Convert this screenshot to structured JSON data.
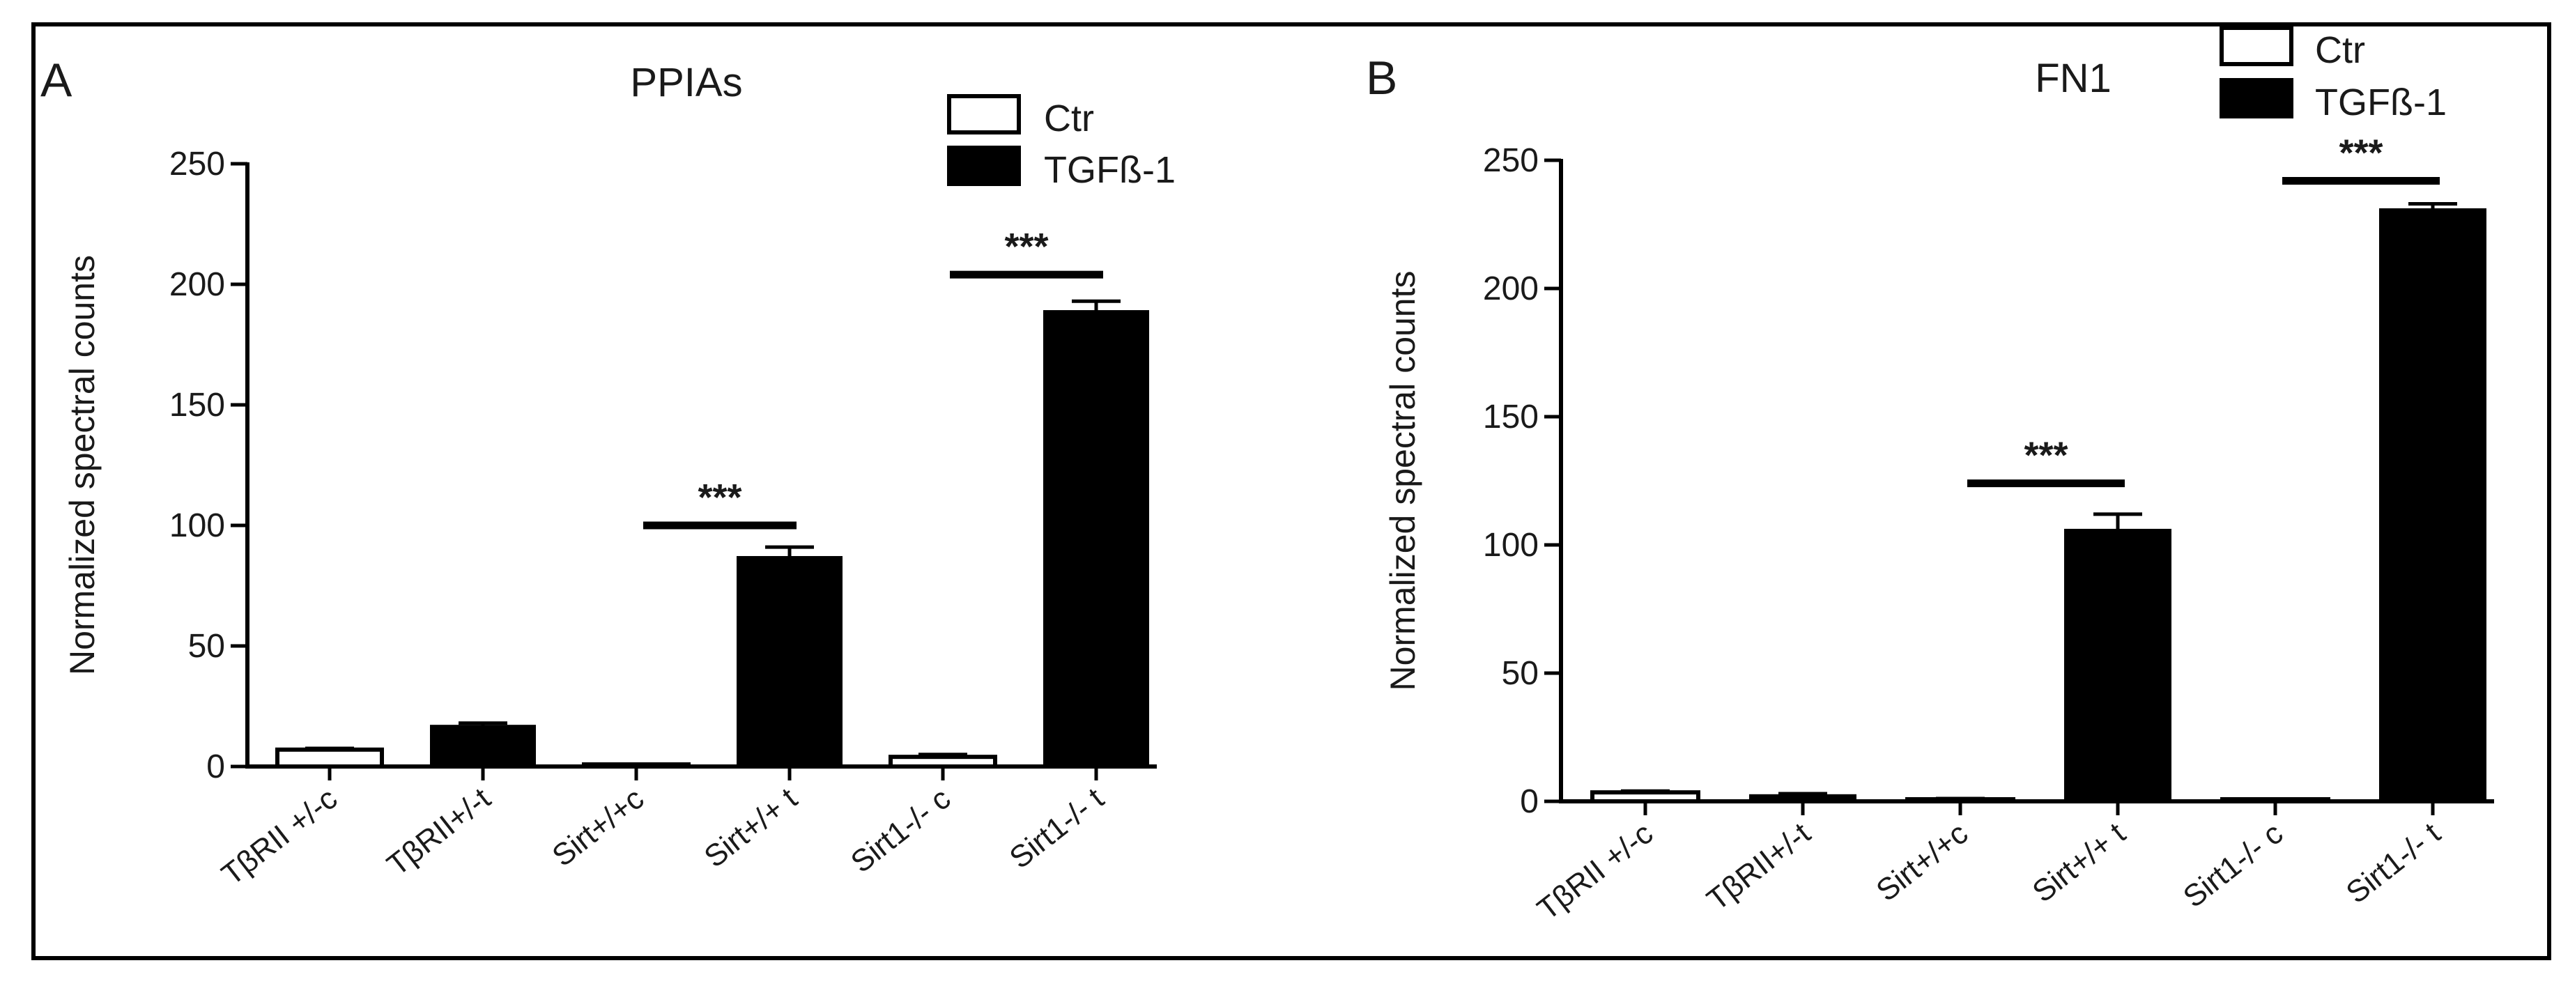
{
  "figure": {
    "panels": [
      {
        "letter": "A",
        "chart_index": 0
      },
      {
        "letter": "B",
        "chart_index": 1
      }
    ]
  },
  "chart_data": [
    {
      "type": "bar",
      "title": "PPIAs",
      "ylabel": "Normalized spectral counts",
      "xlabel": "",
      "categories": [
        "TβRII +/-c",
        "TβRII+/-t",
        "Sirt+/+c",
        "Sirt+/+ t",
        "Sirt1-/- c",
        "Sirt1-/- t"
      ],
      "values": [
        7,
        17,
        0.5,
        87,
        4,
        189
      ],
      "errors": [
        0.5,
        1,
        0.3,
        4,
        1,
        4
      ],
      "bar_fill": [
        "#ffffff",
        "#000000",
        "#ffffff",
        "#000000",
        "#ffffff",
        "#000000"
      ],
      "ylim": [
        0,
        250
      ],
      "yticks": [
        "0",
        "50",
        "100",
        "150",
        "200",
        "250"
      ],
      "legend": {
        "placement": "top-right",
        "entries": [
          {
            "label": "Ctr",
            "fill": "#ffffff"
          },
          {
            "label": "TGFß-1",
            "fill": "#000000"
          }
        ]
      },
      "significance": [
        {
          "label": "***",
          "between": [
            2,
            3
          ],
          "y": 100
        },
        {
          "label": "***",
          "between": [
            4,
            5
          ],
          "y": 204
        }
      ]
    },
    {
      "type": "bar",
      "title": "FN1",
      "ylabel": "Normalized spectral counts",
      "xlabel": "",
      "categories": [
        "TβRII +/-c",
        "TβRII+/-t",
        "Sirt+/+c",
        "Sirt+/+ t",
        "Sirt1-/- c",
        "Sirt1-/- t"
      ],
      "values": [
        3.5,
        2.5,
        0.8,
        106,
        0.3,
        231
      ],
      "errors": [
        0.5,
        0.5,
        0.3,
        6,
        0.2,
        2
      ],
      "bar_fill": [
        "#ffffff",
        "#000000",
        "#ffffff",
        "#000000",
        "#ffffff",
        "#000000"
      ],
      "ylim": [
        0,
        250
      ],
      "yticks": [
        "0",
        "50",
        "100",
        "150",
        "200",
        "250"
      ],
      "legend": {
        "placement": "top-right",
        "entries": [
          {
            "label": "Ctr",
            "fill": "#ffffff"
          },
          {
            "label": "TGFß-1",
            "fill": "#000000"
          }
        ]
      },
      "significance": [
        {
          "label": "***",
          "between": [
            2,
            3
          ],
          "y": 124
        },
        {
          "label": "***",
          "between": [
            4,
            5
          ],
          "y": 242
        }
      ]
    }
  ]
}
